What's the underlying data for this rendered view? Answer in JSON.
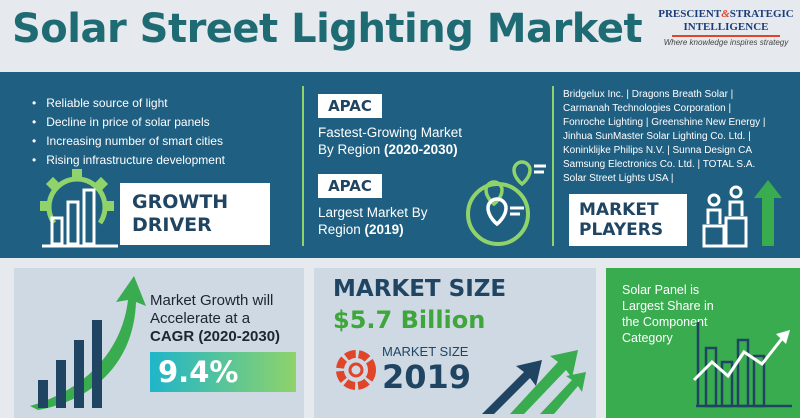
{
  "header": {
    "title": "Solar Street Lighting Market",
    "logo": {
      "line1_a": "PRESCIENT",
      "line1_amp": "&",
      "line1_b": "STRATEGIC",
      "line2": "INTELLIGENCE",
      "tagline": "Where knowledge inspires strategy"
    }
  },
  "growth_drivers": {
    "items": [
      "Reliable source of light",
      "Decline in price of solar panels",
      "Increasing number of smart cities",
      "Rising infrastructure development"
    ],
    "label_line1": "GROWTH",
    "label_line2": "DRIVER"
  },
  "regions": {
    "fastest": {
      "tag": "APAC",
      "line1": "Fastest-Growing Market",
      "line2_a": "By Region ",
      "line2_b": "(2020-2030)"
    },
    "largest": {
      "tag": "APAC",
      "line1": "Largest Market By",
      "line2_a": "Region ",
      "line2_b": "(2019)"
    }
  },
  "market_players": {
    "lines": [
      "Bridgelux Inc. | Dragons Breath Solar |",
      "Carmanah Technologies Corporation |",
      "Fonroche Lighting | Greenshine New Energy |",
      "Jinhua SunMaster Solar Lighting Co. Ltd. |",
      "Koninklijke Philips N.V. | Sunna Design CA",
      "Samsung Electronics Co. Ltd. | TOTAL S.A.",
      "Solar Street Lights USA |"
    ],
    "label_line1": "MARKET",
    "label_line2": "PLAYERS"
  },
  "cagr": {
    "line1": "Market Growth will",
    "line2": "Accelerate at a",
    "line3": "CAGR (2020-2030)",
    "value": "9.4%"
  },
  "market_size": {
    "title": "MARKET SIZE",
    "value": "$5.7 Billion",
    "sub_label": "MARKET SIZE",
    "year": "2019"
  },
  "component": {
    "text": "Solar Panel is Largest Share in the Component Category"
  },
  "colors": {
    "title_teal": "#1f6b74",
    "band_blue": "#1f5f82",
    "accent_green": "#3aac50",
    "light_panel": "#cfd9e4",
    "gradient_teal": "#1fb5c9",
    "gradient_green": "#8fd36a",
    "navy": "#1f4563",
    "logo_red": "#e0452a"
  },
  "icons": [
    "gear-icon",
    "bar-chart-icon",
    "map-pin-icon",
    "podium-people-icon",
    "growth-arrow-icon",
    "pie-chart-icon",
    "line-chart-icon"
  ]
}
